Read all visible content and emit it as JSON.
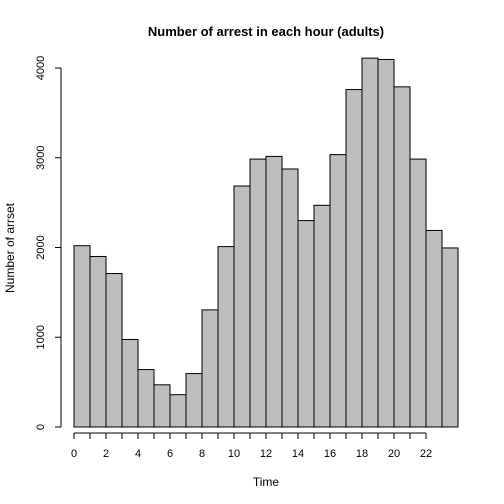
{
  "chart_data": {
    "type": "bar",
    "title": "Number of arrest in each hour (adults)",
    "xlabel": "Time",
    "ylabel": "Number of arrset",
    "x": [
      0,
      1,
      2,
      3,
      4,
      5,
      6,
      7,
      8,
      9,
      10,
      11,
      12,
      13,
      14,
      15,
      16,
      17,
      18,
      19,
      20,
      21,
      22,
      23
    ],
    "values": [
      2020,
      1900,
      1710,
      975,
      640,
      470,
      360,
      595,
      1305,
      2010,
      2685,
      2985,
      3015,
      2875,
      2300,
      2470,
      3035,
      3760,
      4110,
      4095,
      3790,
      2985,
      2190,
      1995
    ],
    "xlim": [
      0,
      24
    ],
    "ylim": [
      0,
      4110
    ],
    "x_ticks": [
      0,
      1,
      2,
      3,
      4,
      5,
      6,
      7,
      8,
      9,
      10,
      11,
      12,
      13,
      14,
      15,
      16,
      17,
      18,
      19,
      20,
      21,
      22
    ],
    "x_tick_labels": [
      "0",
      "",
      "2",
      "",
      "4",
      "",
      "6",
      "",
      "8",
      "",
      "10",
      "",
      "12",
      "",
      "14",
      "",
      "16",
      "",
      "18",
      "",
      "20",
      "",
      "22"
    ],
    "y_ticks": [
      0,
      1000,
      2000,
      3000,
      4000
    ],
    "y_tick_labels": [
      "0",
      "1000",
      "2000",
      "3000",
      "4000"
    ],
    "bar_color": "#bebebe",
    "edge_color": "#000000",
    "grid": false,
    "legend": "none"
  }
}
